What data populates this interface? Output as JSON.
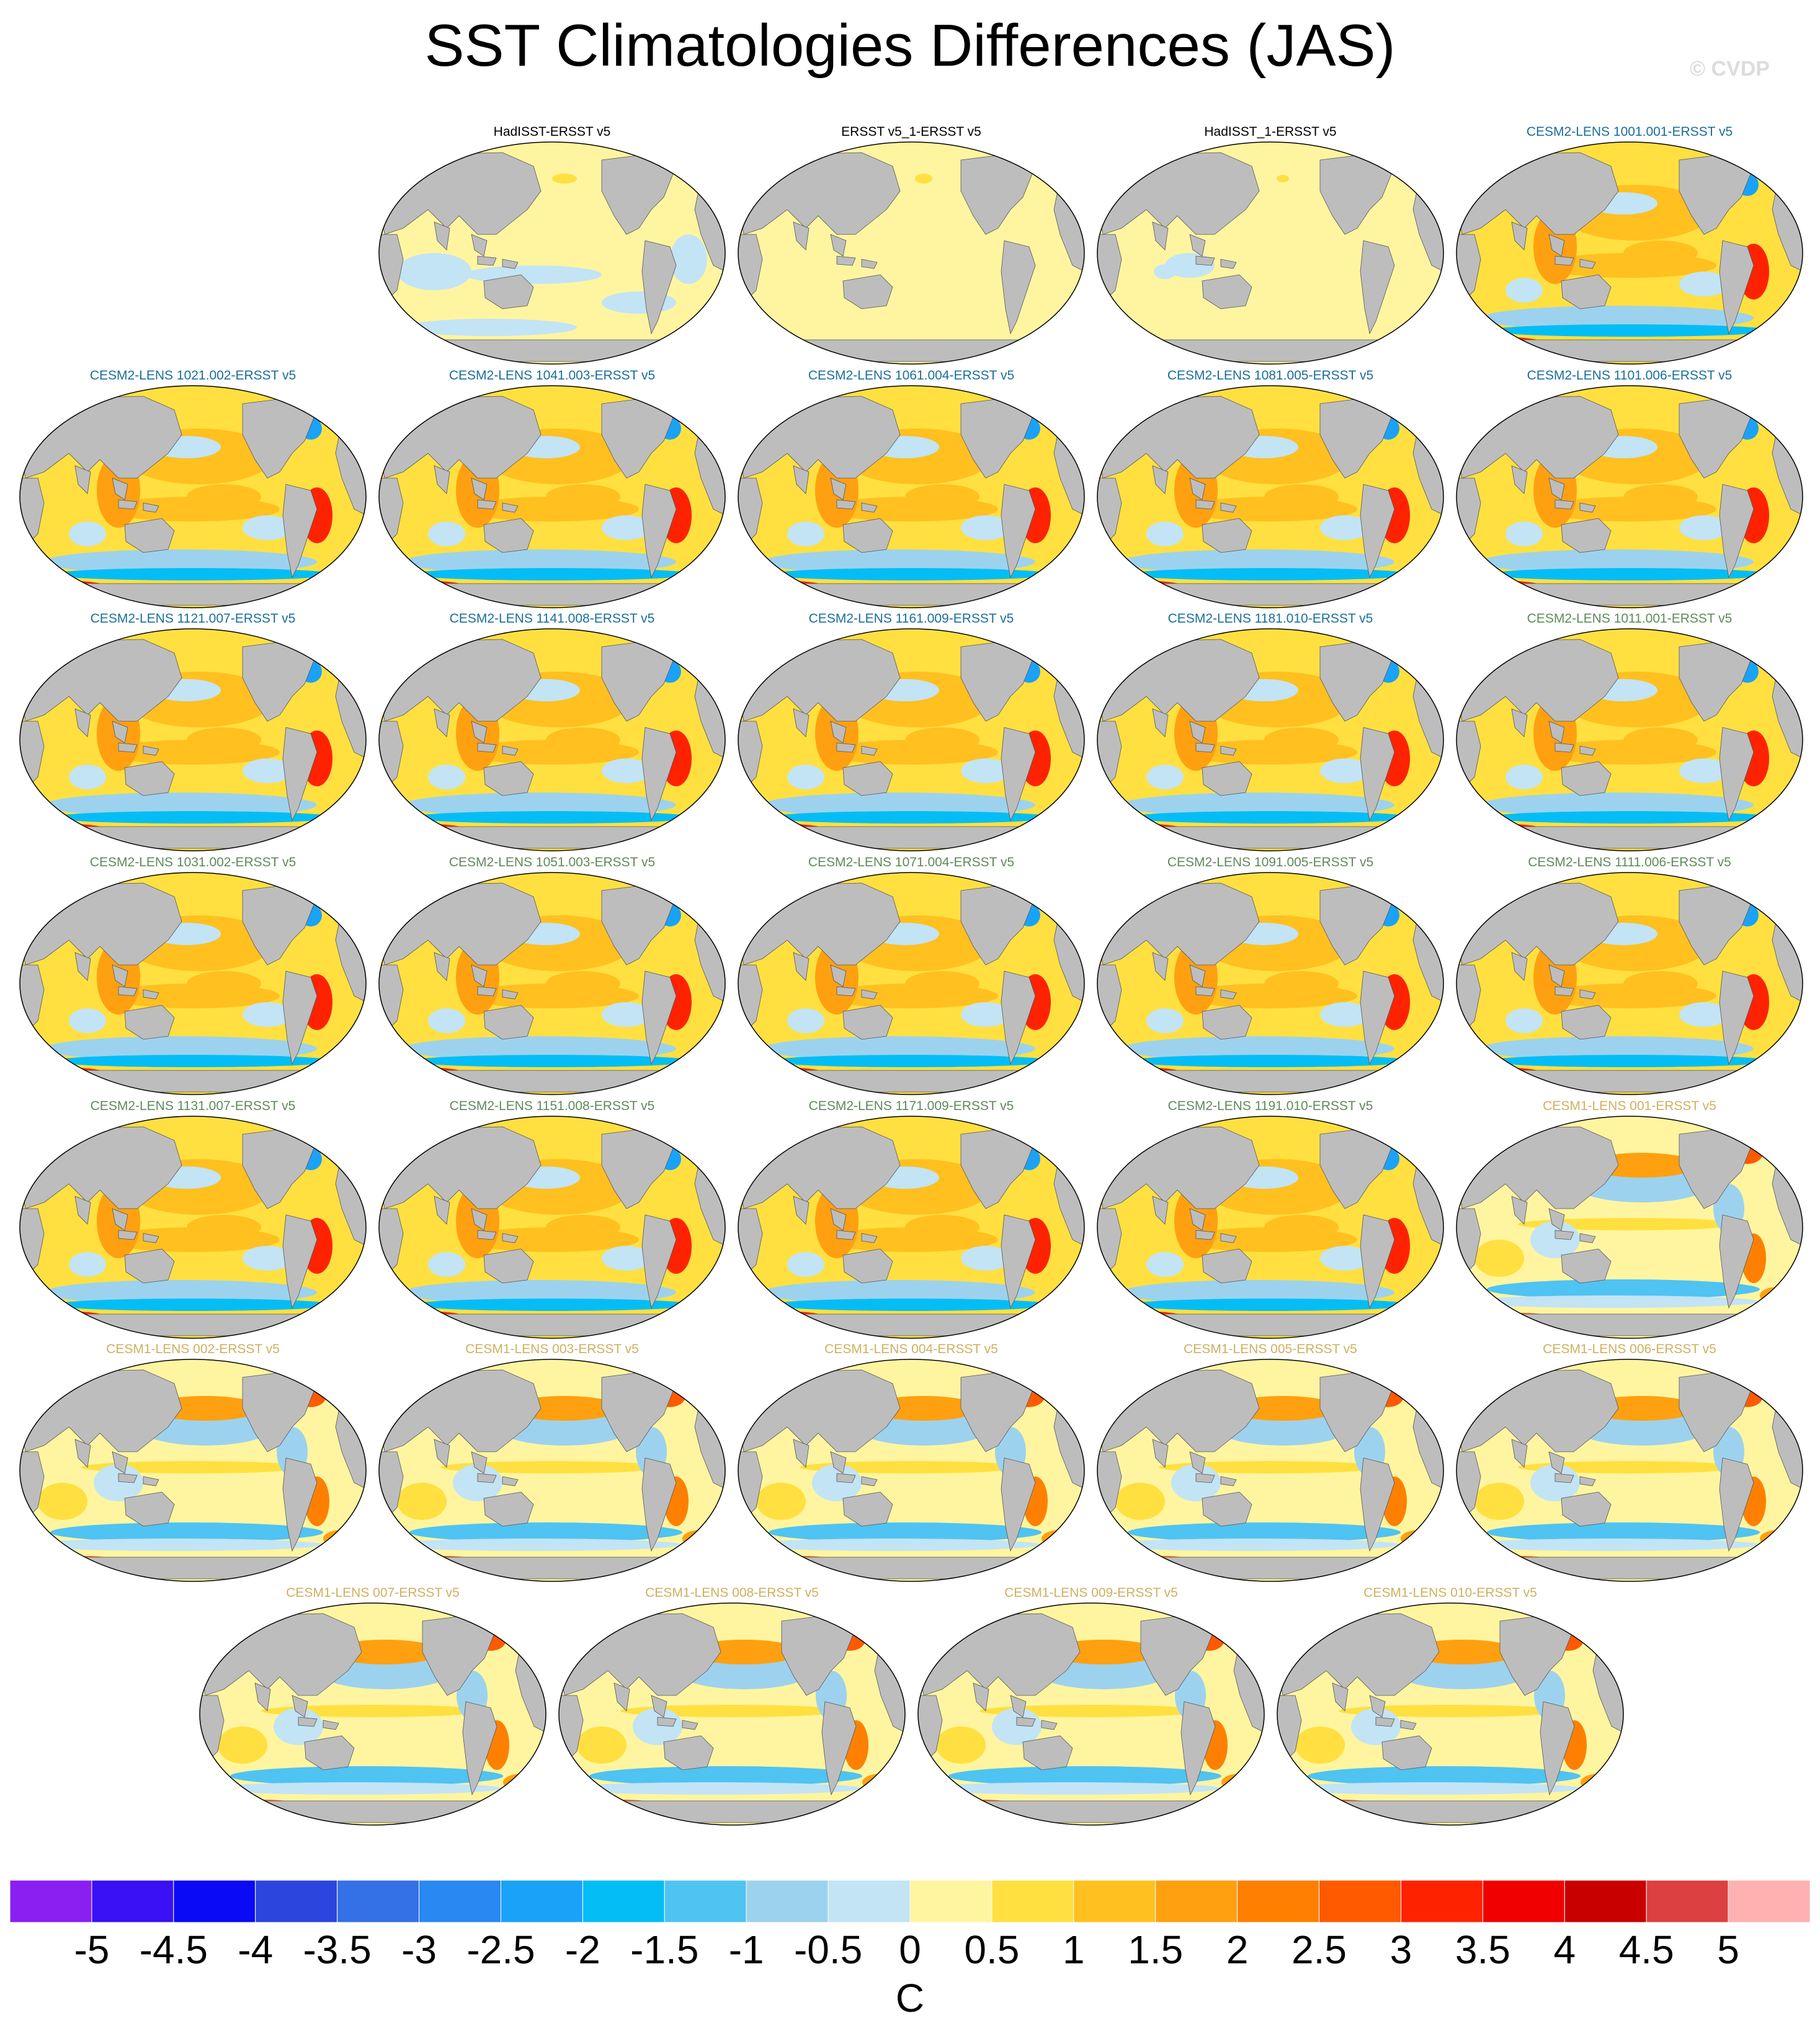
{
  "title": "SST Climatologies Differences (JAS)",
  "watermark": "© CVDP",
  "colors": {
    "title_obs": "#000000",
    "title_cesm2_a": "#1a6e9c",
    "title_cesm2_b": "#5f8a5a",
    "title_cesm1": "#d0b060",
    "land": "#bdbdbd",
    "missing": "#ffffff"
  },
  "panels": [
    {
      "label": "HadISST-ERSST v5",
      "group": "obs",
      "pattern": "obs1"
    },
    {
      "label": "ERSST v5_1-ERSST v5",
      "group": "obs",
      "pattern": "obs2"
    },
    {
      "label": "HadISST_1-ERSST v5",
      "group": "obs",
      "pattern": "obs3"
    },
    {
      "label": "CESM2-LENS 1001.001-ERSST v5",
      "group": "cesm2_a",
      "pattern": "cesm2"
    },
    {
      "label": "CESM2-LENS 1021.002-ERSST v5",
      "group": "cesm2_a",
      "pattern": "cesm2"
    },
    {
      "label": "CESM2-LENS 1041.003-ERSST v5",
      "group": "cesm2_a",
      "pattern": "cesm2"
    },
    {
      "label": "CESM2-LENS 1061.004-ERSST v5",
      "group": "cesm2_a",
      "pattern": "cesm2"
    },
    {
      "label": "CESM2-LENS 1081.005-ERSST v5",
      "group": "cesm2_a",
      "pattern": "cesm2"
    },
    {
      "label": "CESM2-LENS 1101.006-ERSST v5",
      "group": "cesm2_a",
      "pattern": "cesm2"
    },
    {
      "label": "CESM2-LENS 1121.007-ERSST v5",
      "group": "cesm2_a",
      "pattern": "cesm2"
    },
    {
      "label": "CESM2-LENS 1141.008-ERSST v5",
      "group": "cesm2_a",
      "pattern": "cesm2"
    },
    {
      "label": "CESM2-LENS 1161.009-ERSST v5",
      "group": "cesm2_a",
      "pattern": "cesm2"
    },
    {
      "label": "CESM2-LENS 1181.010-ERSST v5",
      "group": "cesm2_a",
      "pattern": "cesm2"
    },
    {
      "label": "CESM2-LENS 1011.001-ERSST v5",
      "group": "cesm2_b",
      "pattern": "cesm2"
    },
    {
      "label": "CESM2-LENS 1031.002-ERSST v5",
      "group": "cesm2_b",
      "pattern": "cesm2"
    },
    {
      "label": "CESM2-LENS 1051.003-ERSST v5",
      "group": "cesm2_b",
      "pattern": "cesm2"
    },
    {
      "label": "CESM2-LENS 1071.004-ERSST v5",
      "group": "cesm2_b",
      "pattern": "cesm2"
    },
    {
      "label": "CESM2-LENS 1091.005-ERSST v5",
      "group": "cesm2_b",
      "pattern": "cesm2"
    },
    {
      "label": "CESM2-LENS 1111.006-ERSST v5",
      "group": "cesm2_b",
      "pattern": "cesm2"
    },
    {
      "label": "CESM2-LENS 1131.007-ERSST v5",
      "group": "cesm2_b",
      "pattern": "cesm2"
    },
    {
      "label": "CESM2-LENS 1151.008-ERSST v5",
      "group": "cesm2_b",
      "pattern": "cesm2"
    },
    {
      "label": "CESM2-LENS 1171.009-ERSST v5",
      "group": "cesm2_b",
      "pattern": "cesm2"
    },
    {
      "label": "CESM2-LENS 1191.010-ERSST v5",
      "group": "cesm2_b",
      "pattern": "cesm2"
    },
    {
      "label": "CESM1-LENS 001-ERSST v5",
      "group": "cesm1",
      "pattern": "cesm1"
    },
    {
      "label": "CESM1-LENS 002-ERSST v5",
      "group": "cesm1",
      "pattern": "cesm1"
    },
    {
      "label": "CESM1-LENS 003-ERSST v5",
      "group": "cesm1",
      "pattern": "cesm1"
    },
    {
      "label": "CESM1-LENS 004-ERSST v5",
      "group": "cesm1",
      "pattern": "cesm1"
    },
    {
      "label": "CESM1-LENS 005-ERSST v5",
      "group": "cesm1",
      "pattern": "cesm1"
    },
    {
      "label": "CESM1-LENS 006-ERSST v5",
      "group": "cesm1",
      "pattern": "cesm1"
    },
    {
      "label": "CESM1-LENS 007-ERSST v5",
      "group": "cesm1",
      "pattern": "cesm1"
    },
    {
      "label": "CESM1-LENS 008-ERSST v5",
      "group": "cesm1",
      "pattern": "cesm1"
    },
    {
      "label": "CESM1-LENS 009-ERSST v5",
      "group": "cesm1",
      "pattern": "cesm1"
    },
    {
      "label": "CESM1-LENS 010-ERSST v5",
      "group": "cesm1",
      "pattern": "cesm1"
    }
  ],
  "colorbar": {
    "unit": "C",
    "ticks": [
      "-5",
      "-4.5",
      "-4",
      "-3.5",
      "-3",
      "-2.5",
      "-2",
      "-1.5",
      "-1",
      "-0.5",
      "0",
      "0.5",
      "1",
      "1.5",
      "2",
      "2.5",
      "3",
      "3.5",
      "4",
      "4.5",
      "5"
    ],
    "colors": [
      "#8b1ef0",
      "#3a10f5",
      "#0a0af7",
      "#2b45dd",
      "#3470e6",
      "#2a88f2",
      "#1aa2f8",
      "#05bdf5",
      "#4fc3f2",
      "#9dd2ee",
      "#c2e4f5",
      "#fff5a0",
      "#ffe040",
      "#ffc020",
      "#ffa010",
      "#ff8000",
      "#ff5a00",
      "#ff2200",
      "#f00000",
      "#c80000",
      "#dc4040",
      "#ffb0b0"
    ]
  },
  "chart_data": {
    "type": "heatmap",
    "title": "SST Climatologies Differences (JAS)",
    "projection": "Robinson (global map)",
    "units": "C",
    "levels": [
      -5,
      -4.5,
      -4,
      -3.5,
      -3,
      -2.5,
      -2,
      -1.5,
      -1,
      -0.5,
      0,
      0.5,
      1,
      1.5,
      2,
      2.5,
      3,
      3.5,
      4,
      4.5,
      5
    ],
    "num_panels": 33,
    "notes": "Gridded SST difference fields; per-panel values approximated by color class"
  }
}
